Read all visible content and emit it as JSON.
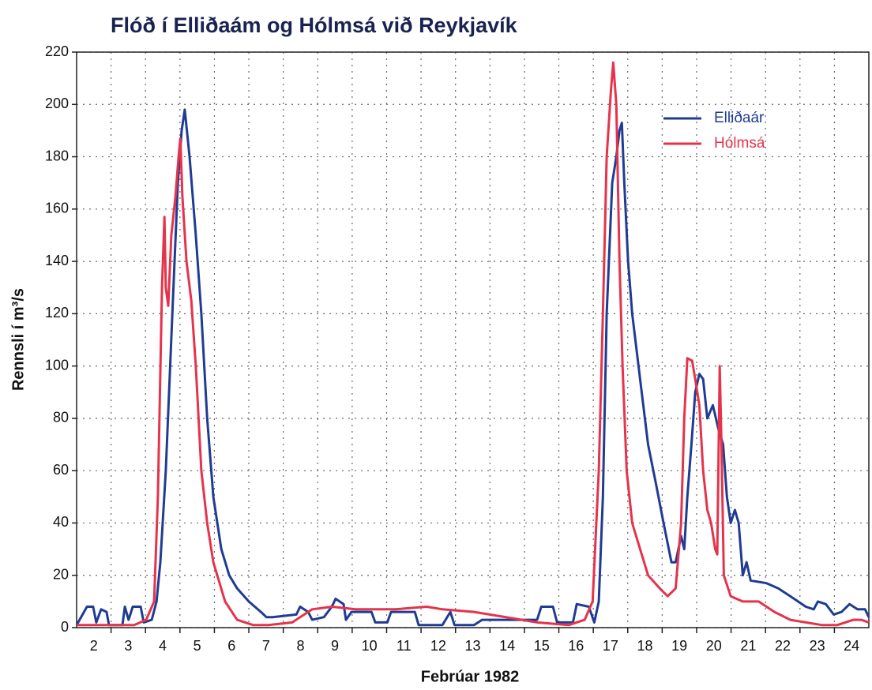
{
  "chart_data": {
    "type": "line",
    "title": "Flóð í Elliðaám og Hólmsá við Reykjavík",
    "x_label": "Febrúar 1982",
    "y_label": "Rennsli í m³/s",
    "xlim": [
      2,
      25
    ],
    "ylim": [
      0,
      220
    ],
    "yticks": [
      0,
      20,
      40,
      60,
      80,
      100,
      120,
      140,
      160,
      180,
      200,
      220
    ],
    "xticks": [
      {
        "value": 2.5,
        "label": "2"
      },
      {
        "value": 3.5,
        "label": "3"
      },
      {
        "value": 4.5,
        "label": "4"
      },
      {
        "value": 5.5,
        "label": "5"
      },
      {
        "value": 6.5,
        "label": "6"
      },
      {
        "value": 7.5,
        "label": "7"
      },
      {
        "value": 8.5,
        "label": "8"
      },
      {
        "value": 9.5,
        "label": "9"
      },
      {
        "value": 10.5,
        "label": "10"
      },
      {
        "value": 11.5,
        "label": "11"
      },
      {
        "value": 12.5,
        "label": "12"
      },
      {
        "value": 13.5,
        "label": "13"
      },
      {
        "value": 14.5,
        "label": "14"
      },
      {
        "value": 15.5,
        "label": "15"
      },
      {
        "value": 16.5,
        "label": "16"
      },
      {
        "value": 17.5,
        "label": "17"
      },
      {
        "value": 18.5,
        "label": "18"
      },
      {
        "value": 19.5,
        "label": "19"
      },
      {
        "value": 20.5,
        "label": "20"
      },
      {
        "value": 21.5,
        "label": "21"
      },
      {
        "value": 22.5,
        "label": "22"
      },
      {
        "value": 23.5,
        "label": "23"
      },
      {
        "value": 24.5,
        "label": "24"
      }
    ],
    "xgrid": [
      3,
      4,
      5,
      6,
      7,
      8,
      9,
      10,
      11,
      12,
      13,
      14,
      15,
      16,
      17,
      18,
      19,
      20,
      21,
      22,
      23,
      24
    ],
    "grid": true,
    "legend": "upper right",
    "series": [
      {
        "name": "Elliðaár",
        "color": "#1f3c92",
        "x": [
          2.0,
          2.3,
          2.48,
          2.57,
          2.71,
          2.87,
          2.94,
          3.33,
          3.4,
          3.51,
          3.63,
          3.86,
          3.95,
          4.18,
          4.32,
          4.43,
          4.59,
          4.78,
          4.94,
          5.05,
          5.14,
          5.28,
          5.46,
          5.62,
          5.79,
          5.97,
          6.2,
          6.43,
          6.66,
          7.0,
          7.35,
          7.51,
          7.69,
          8.38,
          8.49,
          8.72,
          8.84,
          9.18,
          9.41,
          9.52,
          9.75,
          9.82,
          9.98,
          10.56,
          10.67,
          11.02,
          11.13,
          11.82,
          11.93,
          12.62,
          12.85,
          12.97,
          13.54,
          13.77,
          15.37,
          15.49,
          15.83,
          15.95,
          16.41,
          16.52,
          16.87,
          17.03,
          17.16,
          17.28,
          17.39,
          17.55,
          17.67,
          17.76,
          17.83,
          17.9,
          18.01,
          18.13,
          18.36,
          18.59,
          18.82,
          19.04,
          19.27,
          19.39,
          19.55,
          19.64,
          19.73,
          19.85,
          19.96,
          20.08,
          20.19,
          20.31,
          20.47,
          20.65,
          20.77,
          20.88,
          20.99,
          21.11,
          21.22,
          21.34,
          21.45,
          21.57,
          22.03,
          22.37,
          22.72,
          23.17,
          23.4,
          23.52,
          23.75,
          23.98,
          24.21,
          24.44,
          24.67,
          24.89,
          25.0
        ],
        "values": [
          1,
          8,
          8,
          2,
          7,
          6,
          1,
          1,
          8,
          3,
          8,
          8,
          2,
          3,
          10,
          25,
          60,
          120,
          170,
          190,
          198,
          180,
          150,
          120,
          80,
          50,
          30,
          20,
          15,
          10,
          6,
          4,
          4,
          5,
          8,
          6,
          3,
          4,
          8,
          11,
          9,
          3,
          6,
          6,
          2,
          2,
          6,
          6,
          1,
          1,
          6,
          1,
          1,
          3,
          3,
          8,
          8,
          2,
          2,
          9,
          8,
          2,
          10,
          50,
          120,
          170,
          180,
          190,
          193,
          170,
          140,
          120,
          95,
          70,
          55,
          40,
          25,
          25,
          35,
          30,
          50,
          70,
          90,
          97,
          95,
          80,
          85,
          75,
          70,
          50,
          40,
          45,
          40,
          20,
          25,
          18,
          17,
          15,
          12,
          8,
          7,
          10,
          9,
          5,
          6,
          9,
          7,
          7,
          4
        ]
      },
      {
        "name": "Hólmsá",
        "color": "#e5334b",
        "x": [
          2.0,
          3.22,
          3.67,
          4.02,
          4.25,
          4.36,
          4.48,
          4.55,
          4.59,
          4.66,
          4.75,
          4.87,
          4.96,
          5.01,
          5.07,
          5.19,
          5.33,
          5.46,
          5.62,
          5.79,
          5.97,
          6.31,
          6.66,
          7.12,
          7.57,
          8.26,
          8.49,
          8.84,
          9.41,
          10.1,
          11.25,
          12.16,
          12.62,
          13.54,
          14.46,
          15.37,
          16.29,
          16.75,
          16.98,
          17.16,
          17.28,
          17.39,
          17.51,
          17.58,
          17.67,
          17.76,
          17.85,
          17.97,
          18.13,
          18.36,
          18.59,
          18.93,
          19.16,
          19.39,
          19.55,
          19.64,
          19.73,
          19.87,
          19.96,
          20.08,
          20.19,
          20.31,
          20.42,
          20.54,
          20.6,
          20.67,
          20.72,
          20.79,
          20.99,
          21.34,
          21.8,
          22.26,
          22.72,
          23.17,
          23.63,
          24.09,
          24.55,
          24.78,
          25.0
        ],
        "values": [
          1,
          1,
          1,
          3,
          10,
          50,
          130,
          157,
          130,
          123,
          150,
          165,
          180,
          187,
          165,
          140,
          125,
          100,
          60,
          40,
          25,
          10,
          3,
          1,
          1,
          2,
          4,
          7,
          8,
          7,
          7,
          8,
          7,
          6,
          4,
          2,
          1,
          3,
          10,
          60,
          120,
          180,
          205,
          216,
          200,
          140,
          100,
          60,
          40,
          30,
          20,
          15,
          12,
          15,
          40,
          80,
          103,
          102,
          95,
          85,
          60,
          45,
          40,
          30,
          28,
          100,
          70,
          20,
          12,
          10,
          10,
          6,
          3,
          2,
          1,
          1,
          3,
          3,
          2
        ]
      }
    ]
  }
}
